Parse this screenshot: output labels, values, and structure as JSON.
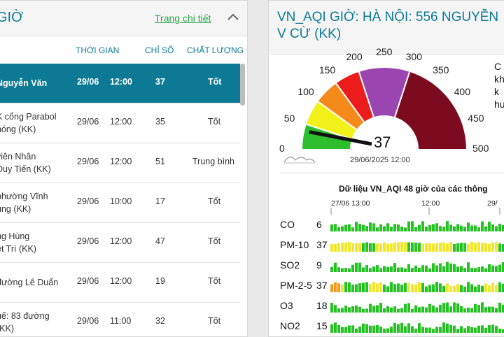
{
  "left": {
    "title": "GIỜ",
    "detail_link": "Trang chi tiết",
    "collapse_icon": "chevron-up-icon",
    "columns": [
      "THỜI GIAN",
      "CHỈ SỐ",
      "CHẤT LƯỢNG"
    ],
    "rows": [
      {
        "loc1": "Nguyễn Văn",
        "loc2": "",
        "date": "29/06",
        "time": "12:00",
        "index": "37",
        "quality": "Tốt",
        "selected": true
      },
      {
        "loc1": "K cổng Parabol",
        "loc2": "hóng (KK)",
        "date": "29/06",
        "time": "12:00",
        "index": "35",
        "quality": "Tốt",
        "selected": false
      },
      {
        "loc1": "viên Nhân",
        "loc2": "Duy Tiến (KK)",
        "date": "29/06",
        "time": "12:00",
        "index": "51",
        "quality": "Trung bình",
        "selected": false
      },
      {
        "loc1": "phường Vĩnh",
        "loc2": "ung (KK)",
        "date": "29/06",
        "time": "10:00",
        "index": "17",
        "quality": "Tốt",
        "selected": false
      },
      {
        "loc1": "ng Hùng",
        "loc2": "ệt Trì (KK)",
        "date": "29/06",
        "time": "12:00",
        "index": "47",
        "quality": "Tốt",
        "selected": false
      },
      {
        "loc1": "đường Lê Duẩn",
        "loc2": "",
        "date": "29/06",
        "time": "12:00",
        "index": "19",
        "quality": "Tốt",
        "selected": false
      },
      {
        "loc1": "uế: 83 đường",
        "loc2": "(KK)",
        "date": "29/06",
        "time": "11:00",
        "index": "32",
        "quality": "Tốt",
        "selected": false
      }
    ]
  },
  "right": {
    "title": "VN_AQI GIỜ: HÀ NỘI: 556 NGUYỄN V CỪ (KK)",
    "gauge": {
      "value": 37,
      "value_text": "37",
      "timestamp": "29/06/2025 12:00",
      "scale_labels": [
        "0",
        "50",
        "100",
        "150",
        "200",
        "250",
        "300",
        "350",
        "400",
        "450",
        "500"
      ],
      "band_colors": [
        "#2dbd2d",
        "#f2f21a",
        "#f58a1b",
        "#ec1c1c",
        "#9b45b0",
        "#7d0b1f"
      ]
    },
    "side_note": [
      "C",
      "kh",
      "k",
      "hu"
    ],
    "chart_title": "Dữ liệu VN_AQI 48 giờ của các thông",
    "x_labels": [
      "27/06 13:00",
      "12:00",
      "29/"
    ],
    "pollutants": [
      {
        "name": "CO",
        "value": "6"
      },
      {
        "name": "PM-10",
        "value": "37"
      },
      {
        "name": "SO2",
        "value": "9"
      },
      {
        "name": "PM-2-5",
        "value": "37"
      },
      {
        "name": "O3",
        "value": "18"
      },
      {
        "name": "NO2",
        "value": "15"
      }
    ],
    "colors": {
      "good": "#22c41f",
      "moderate": "#f0e62a",
      "unhealthy_sensitive": "#f39a1e"
    }
  }
}
